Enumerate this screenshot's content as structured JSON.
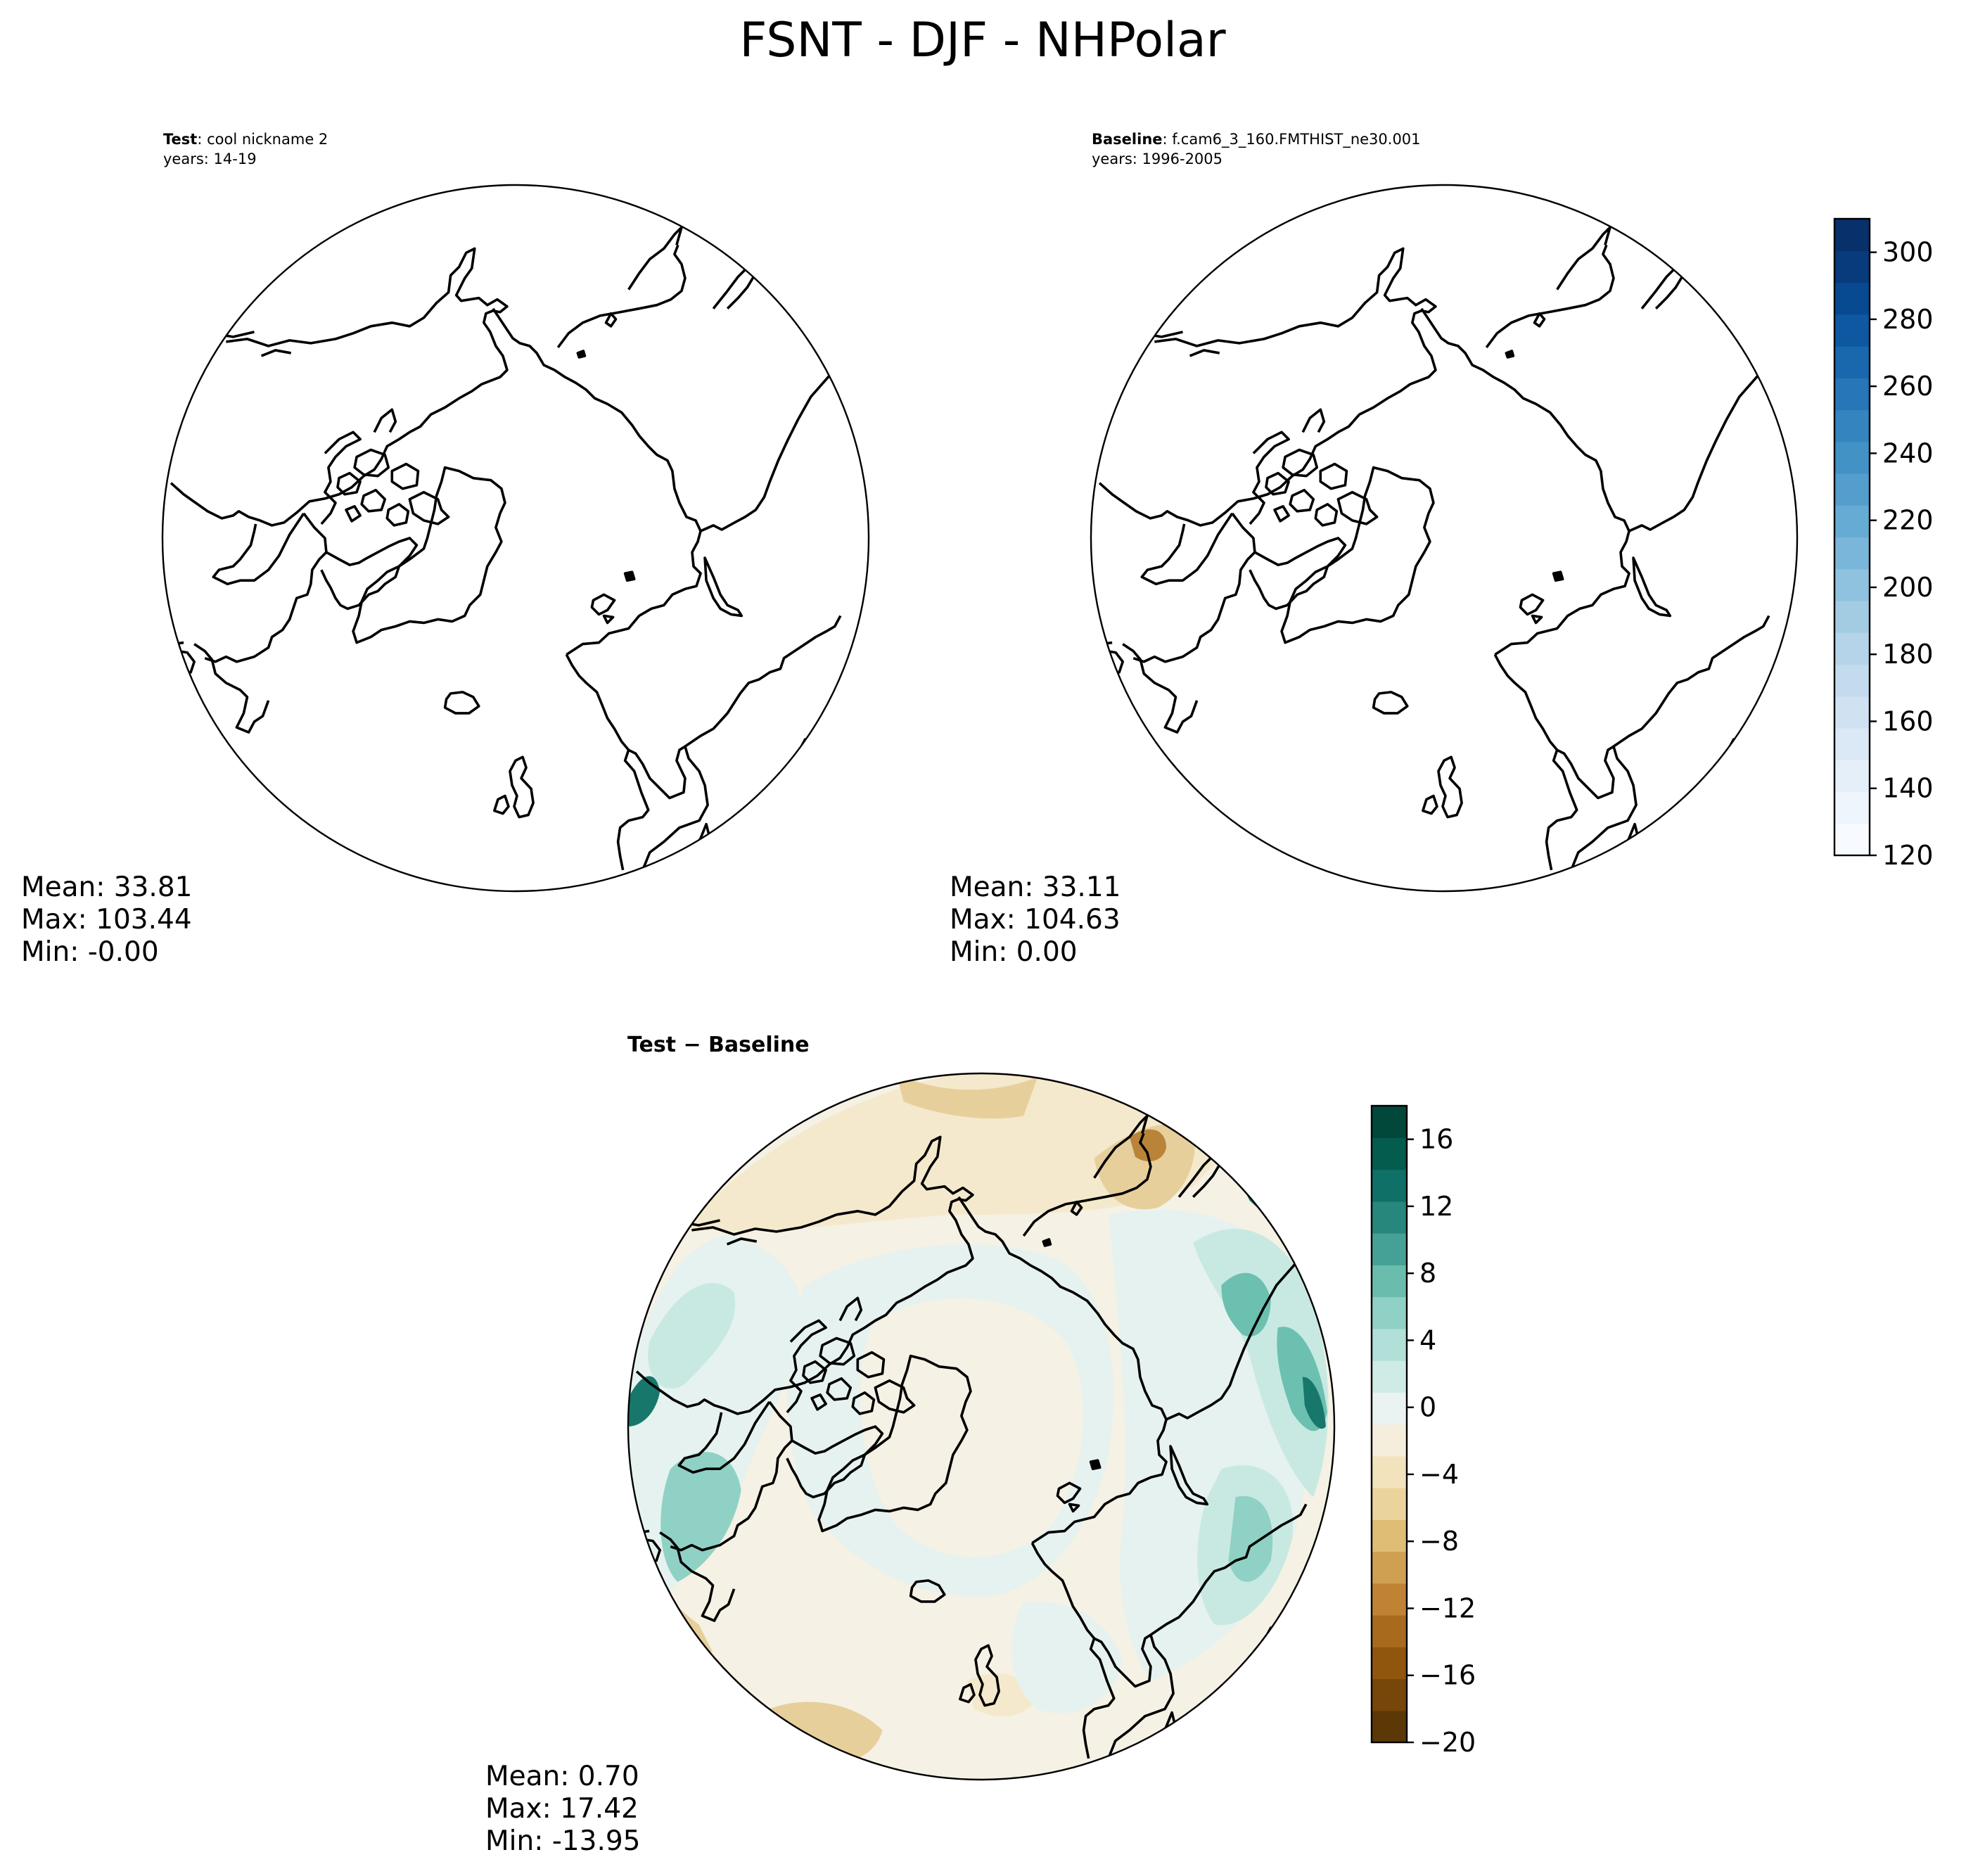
{
  "figure": {
    "title": "FSNT - DJF - NHPolar"
  },
  "panels": {
    "test": {
      "label_bold": "Test",
      "label_rest": ": cool nickname 2",
      "years": "years: 14-19",
      "stats": {
        "mean": "Mean: 33.81",
        "max": "Max: 103.44",
        "min": "Min: -0.00"
      }
    },
    "baseline": {
      "label_bold": "Baseline",
      "label_rest": ": f.cam6_3_160.FMTHIST_ne30.001",
      "years": "years: 1996-2005",
      "stats": {
        "mean": "Mean: 33.11",
        "max": "Max: 104.63",
        "min": "Min:  0.00"
      }
    },
    "diff": {
      "title": "Test − Baseline",
      "stats": {
        "mean": "Mean:  0.70",
        "max": "Max: 17.42",
        "min": "Min: -13.95"
      }
    }
  },
  "colorbars": {
    "blues": {
      "colormap": "Blues",
      "min": 120,
      "max": 310,
      "step": 10,
      "ticks": [
        "120",
        "140",
        "160",
        "180",
        "200",
        "220",
        "240",
        "260",
        "280",
        "300"
      ],
      "colors": [
        "#f7fbff",
        "#eef5fc",
        "#e5eff9",
        "#dbe9f6",
        "#d0e1f2",
        "#c4daee",
        "#b5d4e9",
        "#a3cce3",
        "#8fc2de",
        "#7ab6d9",
        "#66abd4",
        "#539ecd",
        "#4292c6",
        "#3484bf",
        "#2676b8",
        "#1967ad",
        "#0e58a2",
        "#084a91",
        "#083b7c",
        "#08306b"
      ]
    },
    "brbg": {
      "colormap": "BrBG",
      "min": -20,
      "max": 18,
      "step": 2,
      "ticks": [
        "−20",
        "−16",
        "−12",
        "−8",
        "−4",
        "0",
        "4",
        "8",
        "12",
        "16"
      ],
      "colors": [
        "#5c3806",
        "#774609",
        "#90560d",
        "#a86b1e",
        "#bf8333",
        "#cfa052",
        "#dfbd75",
        "#ebd49c",
        "#f2e3bd",
        "#f5eedc",
        "#eaf3f1",
        "#cfebe6",
        "#b1e0d8",
        "#8fd2c5",
        "#6abcad",
        "#45a195",
        "#27877c",
        "#0e7066",
        "#035c4e",
        "#01473a"
      ]
    }
  },
  "map": {
    "projection": "North Polar Stereographic",
    "land_overlay": "coastlines",
    "diff_field_colors": {
      "near_zero": "#f5f1e4",
      "slight_positive": "#e6f2ef",
      "moderate_positive": "#c8e9e2",
      "strong_positive": "#6cc0b0",
      "very_strong_positive": "#17776b",
      "slight_negative": "#f4e9cc",
      "moderate_negative": "#e7cf9c",
      "strong_negative": "#b9843a"
    }
  }
}
